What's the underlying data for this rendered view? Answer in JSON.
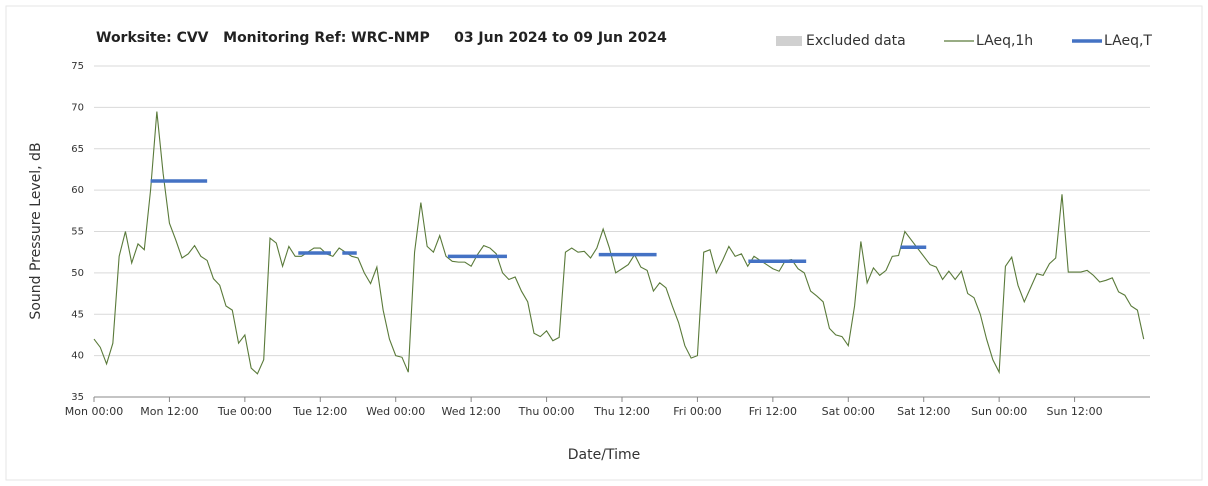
{
  "chart_data": {
    "type": "line",
    "title": "Worksite: CVV   Monitoring Ref: WRC-NMP     03 Jun 2024 to 09 Jun 2024",
    "x_label": "Date/Time",
    "y_label": "Sound Pressure Level, dB",
    "xlim": [
      0,
      168
    ],
    "xticks": [
      {
        "value": 0,
        "label": "Mon 00:00"
      },
      {
        "value": 12,
        "label": "Mon 12:00"
      },
      {
        "value": 24,
        "label": "Tue 00:00"
      },
      {
        "value": 36,
        "label": "Tue 12:00"
      },
      {
        "value": 48,
        "label": "Wed 00:00"
      },
      {
        "value": 60,
        "label": "Wed 12:00"
      },
      {
        "value": 72,
        "label": "Thu 00:00"
      },
      {
        "value": 84,
        "label": "Thu 12:00"
      },
      {
        "value": 96,
        "label": "Fri 00:00"
      },
      {
        "value": 108,
        "label": "Fri 12:00"
      },
      {
        "value": 120,
        "label": "Sat 00:00"
      },
      {
        "value": 132,
        "label": "Sat 12:00"
      },
      {
        "value": 144,
        "label": "Sun 00:00"
      },
      {
        "value": 156,
        "label": "Sun 12:00"
      }
    ],
    "ylim": [
      35,
      75
    ],
    "yticks": [
      35,
      40,
      45,
      50,
      55,
      60,
      65,
      70,
      75
    ],
    "grid": true,
    "legend": "top-right",
    "excluded": {
      "name": "Excluded data",
      "color": "#d0d0d0"
    },
    "x": [
      0,
      1,
      2,
      3,
      4,
      5,
      6,
      7,
      8,
      9,
      10,
      11,
      12,
      13,
      14,
      15,
      16,
      17,
      18,
      19,
      20,
      21,
      22,
      23,
      24,
      25,
      26,
      27,
      28,
      29,
      30,
      31,
      32,
      33,
      34,
      35,
      36,
      37,
      38,
      39,
      40,
      41,
      42,
      43,
      44,
      45,
      46,
      47,
      48,
      49,
      50,
      51,
      52,
      53,
      54,
      55,
      56,
      57,
      58,
      59,
      60,
      61,
      62,
      63,
      64,
      65,
      66,
      67,
      68,
      69,
      70,
      71,
      72,
      73,
      74,
      75,
      76,
      77,
      78,
      79,
      80,
      81,
      82,
      83,
      84,
      85,
      86,
      87,
      88,
      89,
      90,
      91,
      92,
      93,
      94,
      95,
      96,
      97,
      98,
      99,
      100,
      101,
      102,
      103,
      104,
      105,
      106,
      107,
      108,
      109,
      110,
      111,
      112,
      113,
      114,
      115,
      116,
      117,
      118,
      119,
      120,
      121,
      122,
      123,
      124,
      125,
      126,
      127,
      128,
      129,
      130,
      131,
      132,
      133,
      134,
      135,
      136,
      137,
      138,
      139,
      140,
      141,
      142,
      143,
      144,
      145,
      146,
      147,
      148,
      149,
      150,
      151,
      152,
      153,
      154,
      155,
      156,
      157,
      158,
      159,
      160,
      161,
      162,
      163,
      164,
      165,
      166,
      167
    ],
    "series": [
      {
        "name": "LAeq,1h",
        "color": "#5a7a3a",
        "values": [
          42,
          41,
          39,
          41.5,
          52,
          55,
          51.2,
          53.5,
          52.8,
          60,
          69.5,
          62,
          56,
          54,
          51.8,
          52.3,
          53.3,
          52,
          51.5,
          49.3,
          48.5,
          46,
          45.5,
          41.5,
          42.5,
          38.5,
          37.8,
          39.5,
          54.2,
          53.6,
          50.8,
          53.2,
          52,
          52,
          52.5,
          53,
          53,
          52.3,
          52,
          53,
          52.5,
          52,
          51.8,
          50,
          48.7,
          50.7,
          45.5,
          42,
          40,
          39.8,
          38,
          52.5,
          58.5,
          53.2,
          52.5,
          54.5,
          52,
          51.4,
          51.3,
          51.3,
          50.8,
          52.2,
          53.3,
          53,
          52.3,
          50,
          49.2,
          49.5,
          47.8,
          46.5,
          42.7,
          42.3,
          43,
          41.8,
          42.2,
          52.5,
          53,
          52.5,
          52.6,
          51.8,
          53,
          55.3,
          53,
          50,
          50.5,
          51,
          52.2,
          50.7,
          50.3,
          47.8,
          48.8,
          48.2,
          46,
          44,
          41.2,
          39.7,
          40,
          52.5,
          52.8,
          50,
          51.5,
          53.2,
          52,
          52.3,
          50.8,
          52,
          51.5,
          51,
          50.5,
          50.2,
          51.5,
          51.6,
          50.5,
          50,
          47.8,
          47.2,
          46.5,
          43.3,
          42.5,
          42.3,
          41.2,
          46,
          53.8,
          48.8,
          50.6,
          49.7,
          50.3,
          52,
          52.1,
          55,
          54,
          53,
          52,
          51,
          50.7,
          49.2,
          50.2,
          49.2,
          50.2,
          47.5,
          47,
          45,
          42,
          39.5,
          38,
          50.8,
          51.9,
          48.5,
          46.5,
          48.2,
          49.9,
          49.7,
          51.1,
          51.8,
          59.5,
          50.1,
          50.1,
          50.1,
          50.3,
          49.7,
          48.9,
          49.1,
          49.4,
          47.7,
          47.3,
          46,
          45.5,
          42
        ]
      }
    ],
    "periods": {
      "name": "LAeq,T",
      "color": "#4472c4",
      "segments": [
        {
          "start": 9,
          "end": 18,
          "value": 61.1
        },
        {
          "start": 32.5,
          "end": 37.7,
          "value": 52.4
        },
        {
          "start": 39.5,
          "end": 41.8,
          "value": 52.4
        },
        {
          "start": 56.3,
          "end": 65.7,
          "value": 52.0
        },
        {
          "start": 80.3,
          "end": 89.5,
          "value": 52.2
        },
        {
          "start": 104.1,
          "end": 113.3,
          "value": 51.4
        },
        {
          "start": 128.3,
          "end": 132.4,
          "value": 53.1
        }
      ]
    }
  }
}
